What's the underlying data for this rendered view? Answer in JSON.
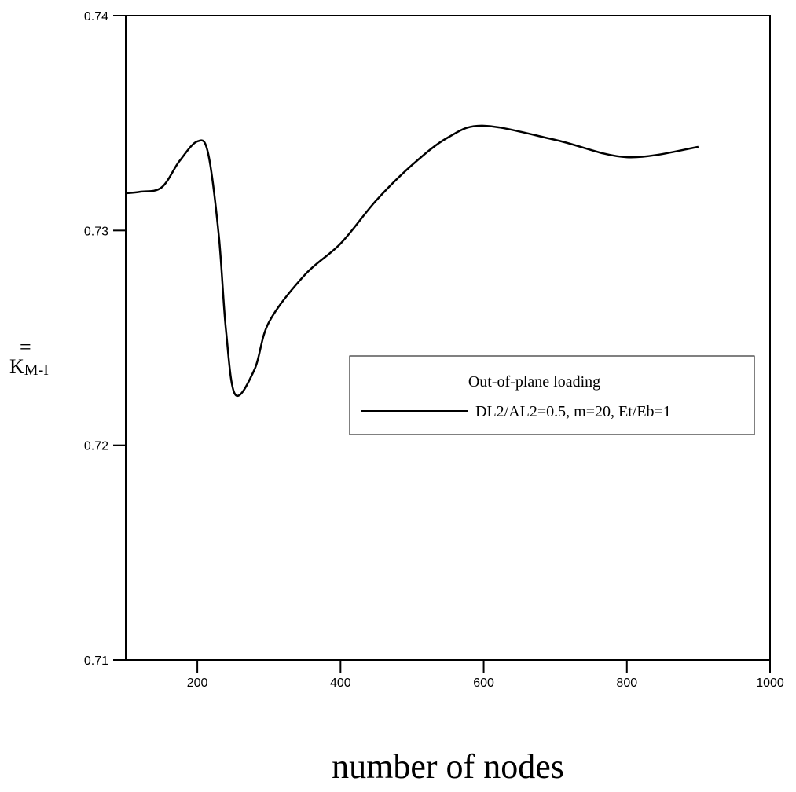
{
  "chart_data": {
    "type": "line",
    "x_label": "number of nodes",
    "y_label": "K",
    "y_label_subscript": "M-I",
    "legend_title": "Out-of-plane loading",
    "series": [
      {
        "name": "DL2/AL2=0.5, m=20, Et/Eb=1",
        "color": "#000000",
        "x": [
          100,
          120,
          150,
          175,
          200,
          215,
          230,
          240,
          253,
          280,
          300,
          350,
          400,
          450,
          500,
          550,
          600,
          700,
          800,
          900
        ],
        "values": [
          0.73173,
          0.7318,
          0.732,
          0.73323,
          0.73415,
          0.7336,
          0.72976,
          0.72536,
          0.72236,
          0.72354,
          0.72573,
          0.72793,
          0.72939,
          0.7314,
          0.73305,
          0.73433,
          0.73488,
          0.73422,
          0.73341,
          0.73389
        ]
      }
    ],
    "xlim": [
      100,
      1000
    ],
    "xticks": [
      200,
      400,
      600,
      800,
      1000
    ],
    "ylim": [
      0.71,
      0.74
    ],
    "yticks": [
      0.71,
      0.72,
      0.73,
      0.74
    ],
    "legend_position": "center-right"
  }
}
